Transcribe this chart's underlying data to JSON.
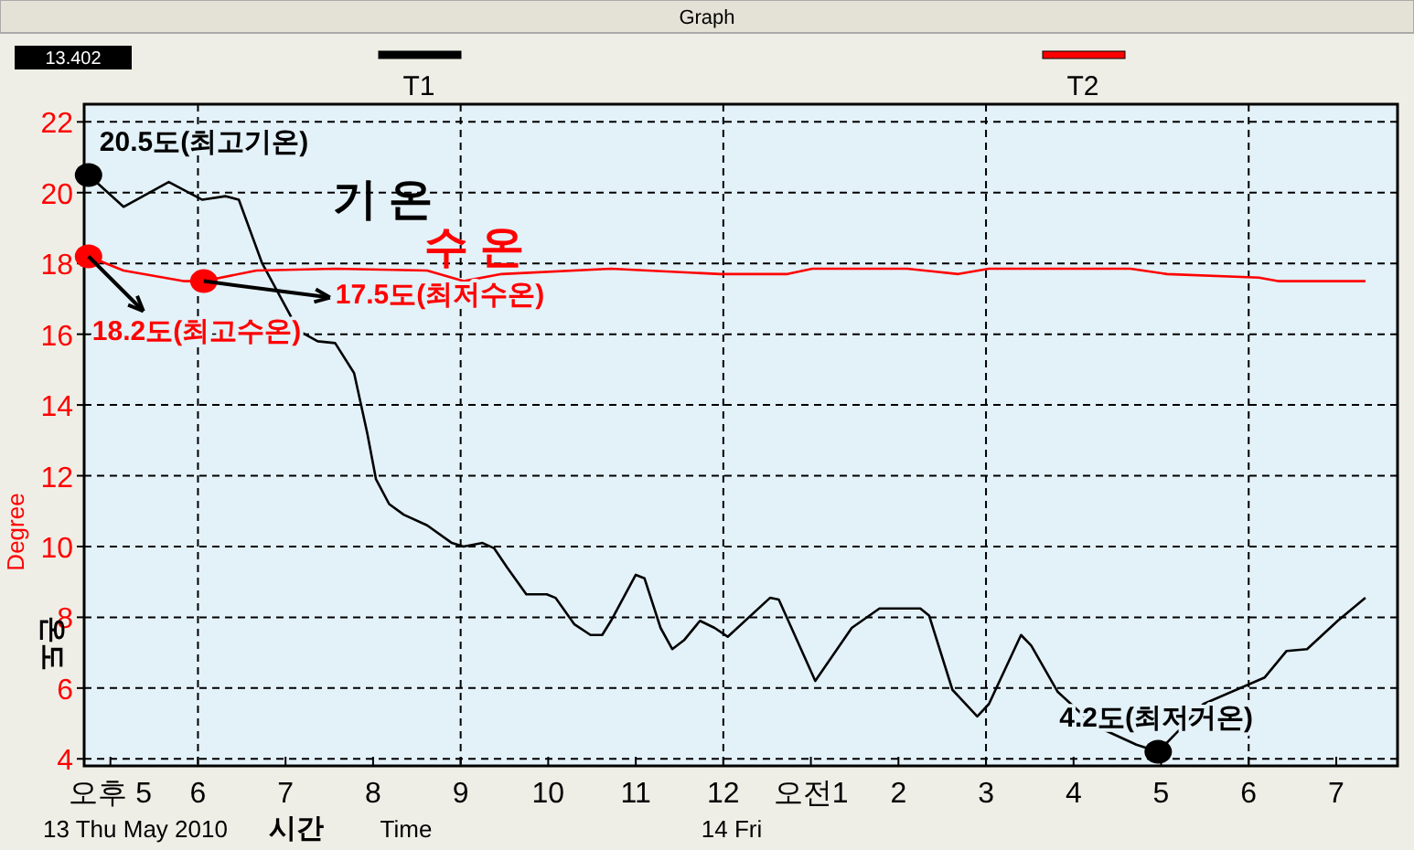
{
  "chart_data": {
    "type": "line",
    "title": "Graph",
    "xlabel": "시간",
    "ylabel": "온도",
    "xlim": [
      "2010-05-13T16:42",
      "2010-05-14T07:42"
    ],
    "ylim": [
      3.8,
      22.5
    ],
    "xticks": [
      {
        "value": "2010-05-13T17:00",
        "label": "오후 5"
      },
      {
        "value": "2010-05-13T18:00",
        "label": "6"
      },
      {
        "value": "2010-05-13T19:00",
        "label": "7"
      },
      {
        "value": "2010-05-13T20:00",
        "label": "8"
      },
      {
        "value": "2010-05-13T21:00",
        "label": "9"
      },
      {
        "value": "2010-05-13T22:00",
        "label": "10"
      },
      {
        "value": "2010-05-13T23:00",
        "label": "11"
      },
      {
        "value": "2010-05-14T00:00",
        "label": "12"
      },
      {
        "value": "2010-05-14T01:00",
        "label": "오전1"
      },
      {
        "value": "2010-05-14T02:00",
        "label": "2"
      },
      {
        "value": "2010-05-14T03:00",
        "label": "3"
      },
      {
        "value": "2010-05-14T04:00",
        "label": "4"
      },
      {
        "value": "2010-05-14T05:00",
        "label": "5"
      },
      {
        "value": "2010-05-14T06:00",
        "label": "6"
      },
      {
        "value": "2010-05-14T07:00",
        "label": "7"
      }
    ],
    "yticks": [
      4,
      6,
      8,
      10,
      12,
      14,
      16,
      18,
      20,
      22
    ],
    "grid": true,
    "legend": "top",
    "marker": "none",
    "line_style": "solid",
    "series": [
      {
        "name": "T1",
        "color": "#000000",
        "x": [
          "2010-05-13T16:45",
          "2010-05-13T17:09",
          "2010-05-13T17:40",
          "2010-05-13T18:03",
          "2010-05-13T18:19",
          "2010-05-13T18:28",
          "2010-05-13T18:44",
          "2010-05-13T19:09",
          "2010-05-13T19:22",
          "2010-05-13T19:34",
          "2010-05-13T19:47",
          "2010-05-13T19:56",
          "2010-05-13T20:02",
          "2010-05-13T20:11",
          "2010-05-13T20:21",
          "2010-05-13T20:37",
          "2010-05-13T20:54",
          "2010-05-13T21:02",
          "2010-05-13T21:15",
          "2010-05-13T21:23",
          "2010-05-13T21:32",
          "2010-05-13T21:45",
          "2010-05-13T21:59",
          "2010-05-13T22:05",
          "2010-05-13T22:18",
          "2010-05-13T22:29",
          "2010-05-13T22:37",
          "2010-05-13T22:43",
          "2010-05-13T23:00",
          "2010-05-13T23:06",
          "2010-05-13T23:17",
          "2010-05-13T23:25",
          "2010-05-13T23:33",
          "2010-05-13T23:44",
          "2010-05-13T23:54",
          "2010-05-14T00:03",
          "2010-05-14T00:32",
          "2010-05-14T00:38",
          "2010-05-14T01:03",
          "2010-05-14T01:28",
          "2010-05-14T01:47",
          "2010-05-14T02:15",
          "2010-05-14T02:21",
          "2010-05-14T02:37",
          "2010-05-14T02:54",
          "2010-05-14T03:02",
          "2010-05-14T03:24",
          "2010-05-14T03:31",
          "2010-05-14T03:49",
          "2010-05-14T04:14",
          "2010-05-14T04:43",
          "2010-05-14T04:58",
          "2010-05-14T05:12",
          "2010-05-14T05:29",
          "2010-05-14T06:11",
          "2010-05-14T06:26",
          "2010-05-14T06:40",
          "2010-05-14T07:01",
          "2010-05-14T07:20"
        ],
        "values": [
          20.5,
          19.6,
          20.3,
          19.8,
          19.9,
          19.8,
          18.0,
          16.1,
          15.8,
          15.75,
          14.9,
          13.2,
          11.9,
          11.2,
          10.9,
          10.6,
          10.1,
          10.0,
          10.1,
          9.95,
          9.4,
          8.65,
          8.65,
          8.55,
          7.8,
          7.5,
          7.5,
          7.9,
          9.2,
          9.1,
          7.7,
          7.1,
          7.35,
          7.9,
          7.7,
          7.45,
          8.55,
          8.5,
          6.2,
          7.7,
          8.25,
          8.25,
          8.05,
          5.95,
          5.2,
          5.55,
          7.5,
          7.2,
          5.9,
          4.95,
          4.4,
          4.2,
          4.8,
          5.55,
          6.3,
          7.05,
          7.1,
          7.9,
          8.55
        ]
      },
      {
        "name": "T2",
        "color": "#ff0000",
        "x": [
          "2010-05-13T16:45",
          "2010-05-13T17:09",
          "2010-05-13T17:50",
          "2010-05-13T18:04",
          "2010-05-13T18:40",
          "2010-05-13T19:34",
          "2010-05-13T20:37",
          "2010-05-13T21:02",
          "2010-05-13T21:28",
          "2010-05-13T22:43",
          "2010-05-13T23:58",
          "2010-05-14T00:44",
          "2010-05-14T01:01",
          "2010-05-14T02:06",
          "2010-05-14T02:41",
          "2010-05-14T03:02",
          "2010-05-14T04:14",
          "2010-05-14T04:39",
          "2010-05-14T05:04",
          "2010-05-14T06:07",
          "2010-05-14T06:20",
          "2010-05-14T07:20"
        ],
        "values": [
          18.2,
          17.8,
          17.5,
          17.5,
          17.8,
          17.85,
          17.8,
          17.5,
          17.7,
          17.85,
          17.7,
          17.7,
          17.85,
          17.85,
          17.7,
          17.85,
          17.85,
          17.85,
          17.7,
          17.6,
          17.5,
          17.5
        ]
      },
      {
        "type": "scatter",
        "color": "#000000",
        "marker": "circle",
        "x": [
          "2010-05-13T16:45",
          "2010-05-14T04:58"
        ],
        "values": [
          20.5,
          4.2
        ]
      },
      {
        "type": "scatter",
        "color": "#ff0000",
        "marker": "circle",
        "x": [
          "2010-05-13T16:45",
          "2010-05-13T18:04"
        ],
        "values": [
          18.2,
          17.5
        ]
      }
    ],
    "annotations": [
      {
        "text": "20.5도(최고기온)",
        "x": "2010-05-13T16:45",
        "y": 20.5
      },
      {
        "text": "18.2도(최고수온)",
        "x": "2010-05-13T16:45",
        "y": 18.2
      },
      {
        "text": "17.5도(최저수온)",
        "x": "2010-05-13T18:04",
        "y": 17.5
      },
      {
        "text": "4.2도(최저거온)",
        "x": "2010-05-14T04:58",
        "y": 4.2
      },
      "기 온",
      "수 온",
      "Degree",
      "Time",
      "13 Thu May 2010",
      "14 Fri",
      "13.402"
    ]
  }
}
